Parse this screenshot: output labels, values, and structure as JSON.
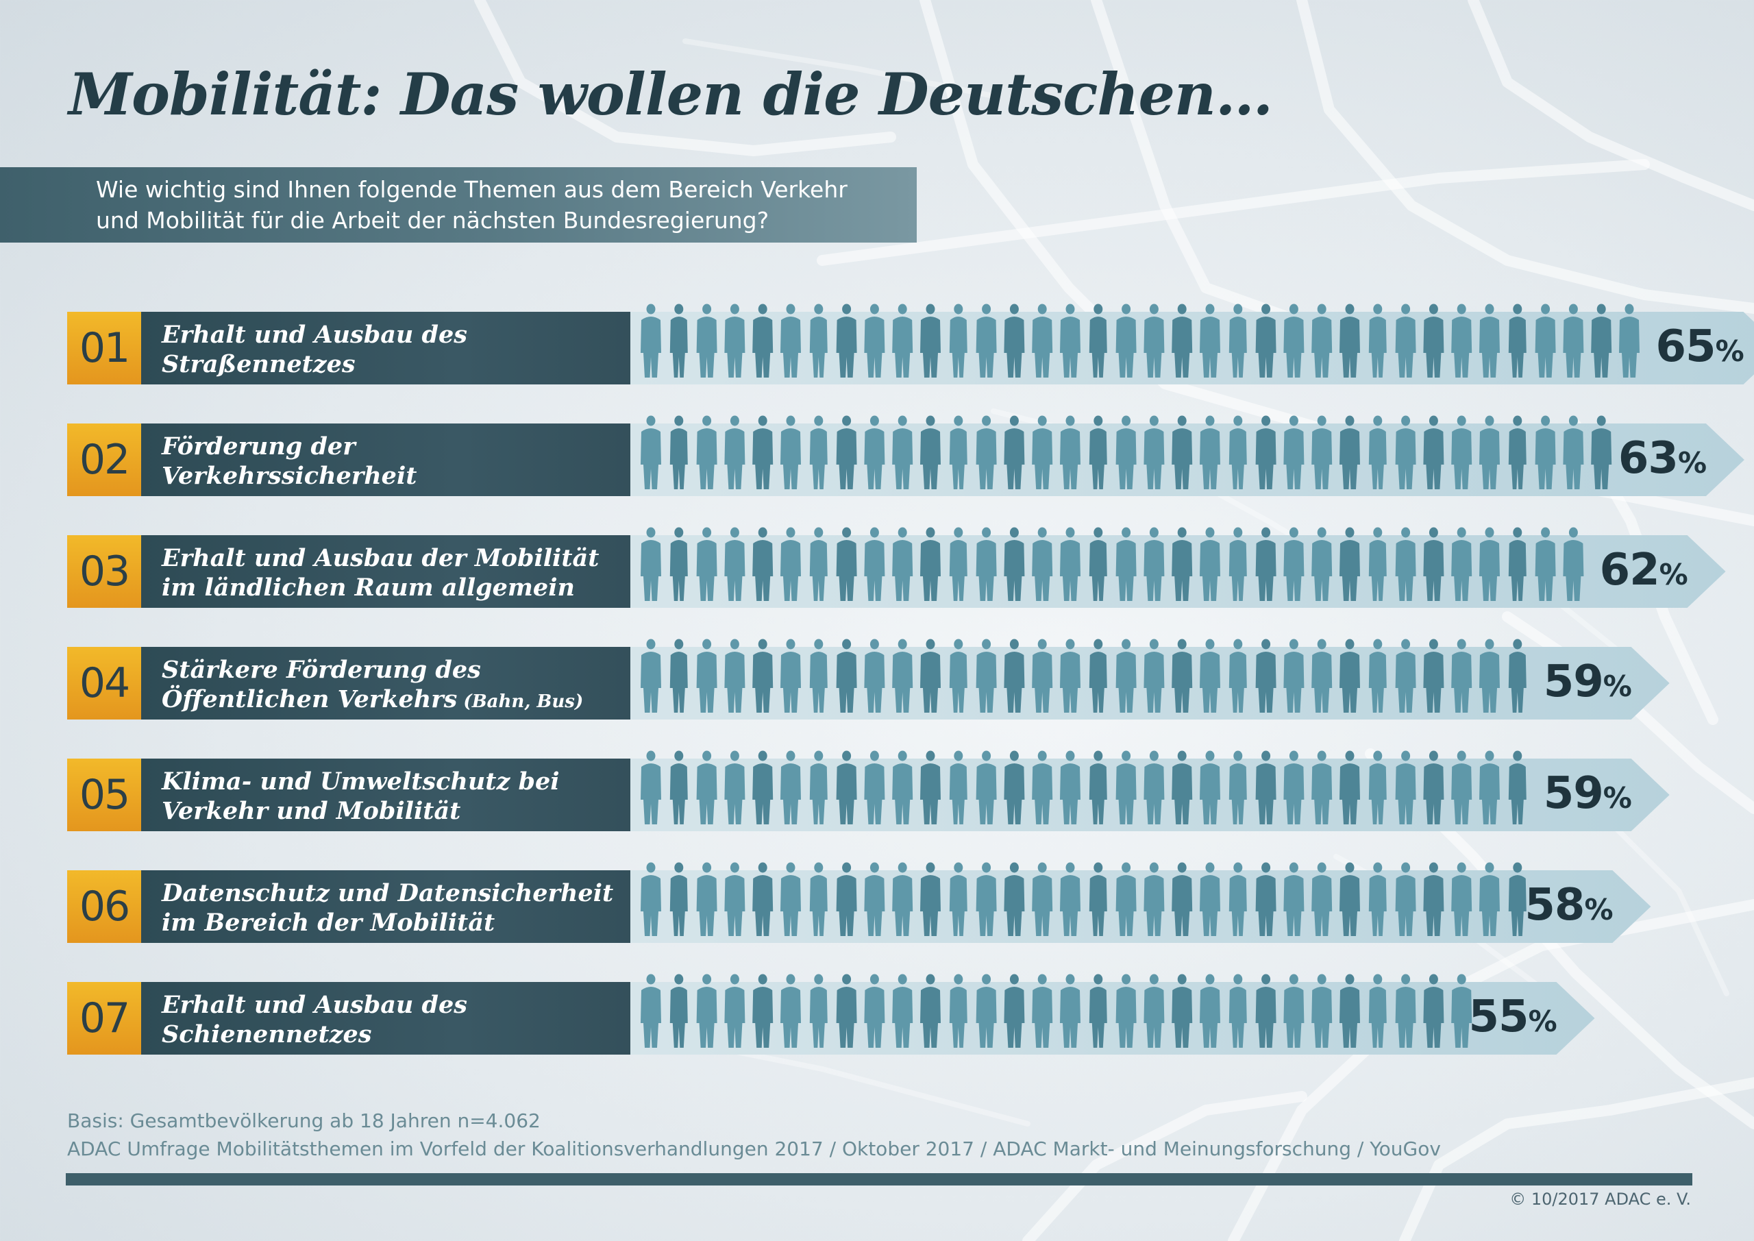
{
  "title": "Mobilität: Das wollen die Deutschen…",
  "question": {
    "line1": "Wie wichtig sind Ihnen folgende Themen aus dem Bereich Verkehr",
    "line2": "und Mobilität für die Arbeit der nächsten Bundesregierung?"
  },
  "colors": {
    "rank_bg": "#f2b92a",
    "label_bg": "#2e4b55",
    "arrow_bg": "#c6dbe3",
    "figure": "#5f98a9",
    "figure_dark": "#4e8596",
    "percent_text": "#1f343d"
  },
  "chart_data": {
    "type": "bar",
    "unit": "%",
    "categories": [
      "Erhalt und Ausbau des Straßennetzes",
      "Förderung der Verkehrssicherheit",
      "Erhalt und Ausbau der Mobilität im ländlichen Raum allgemein",
      "Stärkere Förderung des Öffentlichen Verkehrs (Bahn, Bus)",
      "Klima- und Umweltschutz bei Verkehr und Mobilität",
      "Datenschutz und Datensicherheit im Bereich der Mobilität",
      "Erhalt und Ausbau des Schienennetzes"
    ],
    "values": [
      65,
      63,
      62,
      59,
      59,
      58,
      55
    ],
    "rows": [
      {
        "rank": "01",
        "line1": "Erhalt und Ausbau des",
        "line2": "Straßennetzes",
        "line2_suffix": "",
        "value": 65,
        "value_label": "65"
      },
      {
        "rank": "02",
        "line1": "Förderung der",
        "line2": "Verkehrssicherheit",
        "line2_suffix": "",
        "value": 63,
        "value_label": "63"
      },
      {
        "rank": "03",
        "line1": "Erhalt und Ausbau der Mobilität",
        "line2": "im ländlichen Raum allgemein",
        "line2_suffix": "",
        "value": 62,
        "value_label": "62"
      },
      {
        "rank": "04",
        "line1": "Stärkere Förderung des",
        "line2": "Öffentlichen Verkehrs",
        "line2_suffix": " (Bahn, Bus)",
        "value": 59,
        "value_label": "59"
      },
      {
        "rank": "05",
        "line1": "Klima- und Umweltschutz bei",
        "line2": "Verkehr und Mobilität",
        "line2_suffix": "",
        "value": 59,
        "value_label": "59"
      },
      {
        "rank": "06",
        "line1": "Datenschutz und Datensicherheit",
        "line2": "im Bereich der Mobilität",
        "line2_suffix": "",
        "value": 58,
        "value_label": "58"
      },
      {
        "rank": "07",
        "line1": "Erhalt und Ausbau des",
        "line2": "Schienennetzes",
        "line2_suffix": "",
        "value": 55,
        "value_label": "55"
      }
    ],
    "percent_sign": "%"
  },
  "footer": {
    "basis": "Basis: Gesamtbevölkerung ab 18 Jahren n=4.062",
    "source": "ADAC Umfrage Mobilitätsthemen im Vorfeld der Koalitionsverhandlungen 2017 / Oktober 2017 / ADAC Markt- und Meinungsforschung / YouGov",
    "copyright": "© 10/2017 ADAC e. V."
  }
}
